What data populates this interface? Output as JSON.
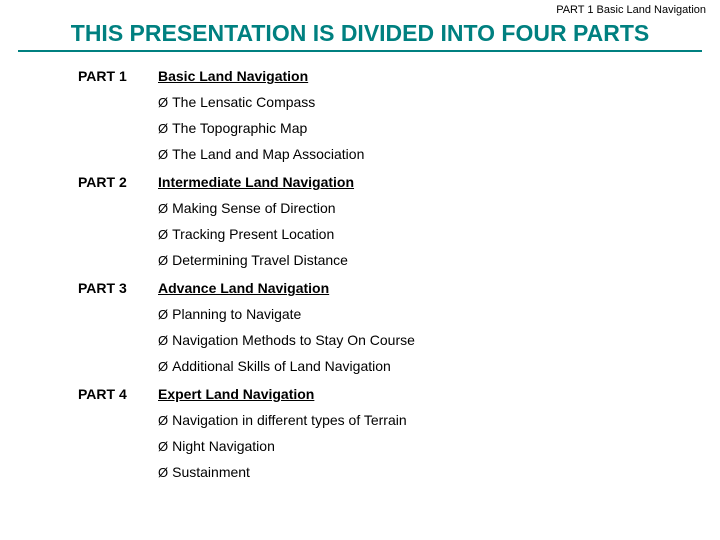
{
  "header": {
    "label": "PART 1  Basic Land Navigation"
  },
  "title": "THIS PRESENTATION IS DIVIDED INTO FOUR PARTS",
  "colors": {
    "accent": "#008080",
    "text": "#000000",
    "background": "#ffffff"
  },
  "typography": {
    "title_fontsize": 23,
    "body_fontsize": 14,
    "header_fontsize": 11,
    "font_family": "Arial"
  },
  "bullet_glyph": "Ø",
  "parts": [
    {
      "label": "PART 1",
      "title": "Basic Land Navigation",
      "items": [
        " The Lensatic Compass",
        " The Topographic Map",
        " The Land and Map Association"
      ]
    },
    {
      "label": "PART 2",
      "title": "Intermediate Land Navigation",
      "items": [
        " Making Sense of Direction",
        "Tracking Present Location",
        " Determining Travel Distance"
      ]
    },
    {
      "label": "PART 3",
      "title": "Advance Land Navigation",
      "items": [
        " Planning to Navigate",
        " Navigation Methods to Stay On Course",
        " Additional Skills of Land Navigation"
      ]
    },
    {
      "label": "PART 4",
      "title": "Expert Land Navigation",
      "items": [
        " Navigation in different types of Terrain",
        " Night Navigation",
        " Sustainment"
      ]
    }
  ]
}
